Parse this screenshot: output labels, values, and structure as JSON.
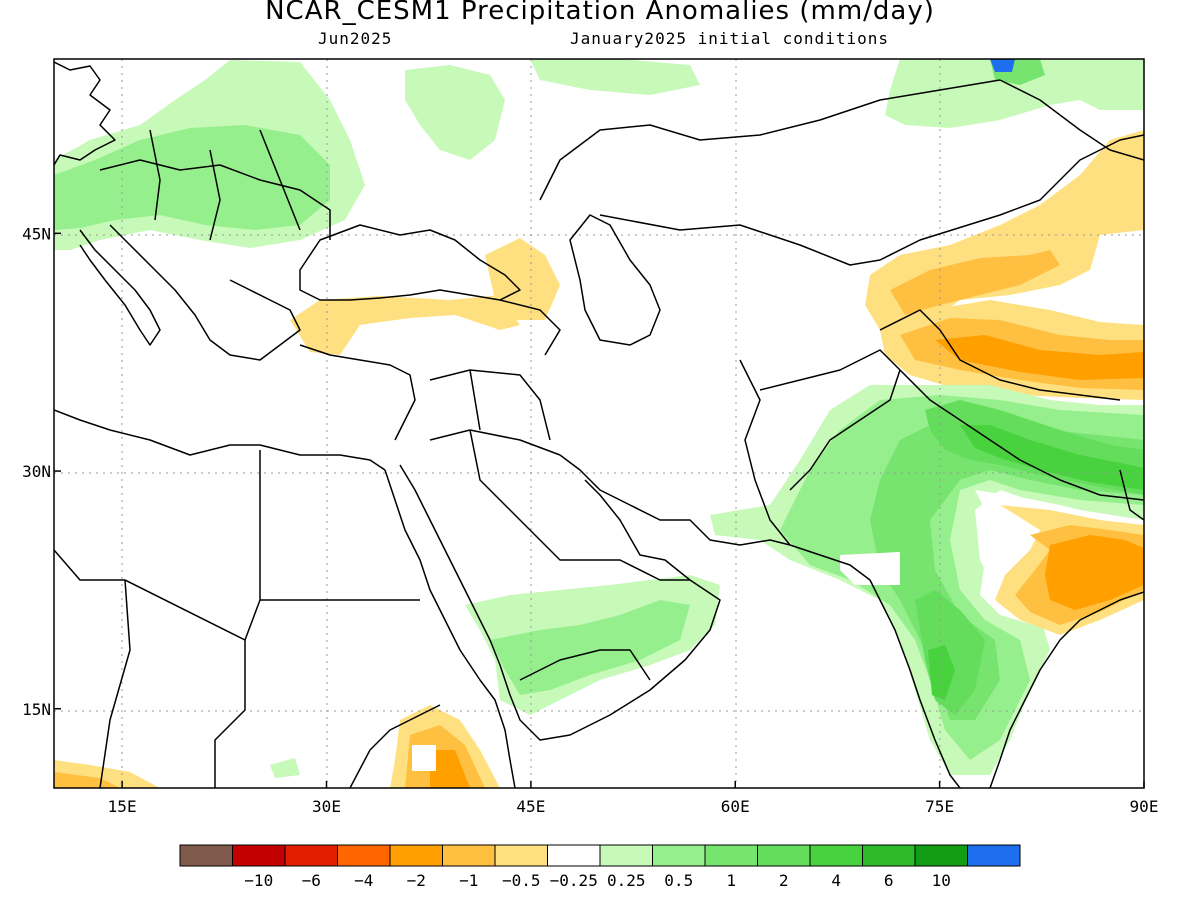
{
  "header": {
    "title": "NCAR_CESM1 Precipitation Anomalies (mm/day)",
    "valid_month": "Jun2025",
    "init": "January2025 initial conditions"
  },
  "map": {
    "projection": "lat-lon",
    "lon_range": [
      10,
      90
    ],
    "lat_range": [
      10,
      56
    ],
    "grid": true,
    "x_ticks": [
      {
        "lon": 15,
        "label": "15E"
      },
      {
        "lon": 30,
        "label": "30E"
      },
      {
        "lon": 45,
        "label": "45E"
      },
      {
        "lon": 60,
        "label": "60E"
      },
      {
        "lon": 75,
        "label": "75E"
      },
      {
        "lon": 90,
        "label": "90E"
      }
    ],
    "y_ticks": [
      {
        "lat": 45,
        "label": "45N"
      },
      {
        "lat": 30,
        "label": "30N"
      },
      {
        "lat": 15,
        "label": "15N"
      }
    ]
  },
  "colorbar": {
    "colors": [
      "#7f5a4d",
      "#c30000",
      "#e11f00",
      "#ff6600",
      "#ff9f00",
      "#ffbf40",
      "#ffe080",
      "#ffffff",
      "#c7f9b9",
      "#95ef8c",
      "#78e470",
      "#64dc5c",
      "#48d23d",
      "#2ebb2b",
      "#129e14",
      "#1e6ff0"
    ],
    "labels": [
      "−10",
      "−6",
      "−4",
      "−2",
      "−1",
      "−0.5",
      "−0.25",
      "0.25",
      "0.5",
      "1",
      "2",
      "4",
      "6",
      "10"
    ]
  }
}
